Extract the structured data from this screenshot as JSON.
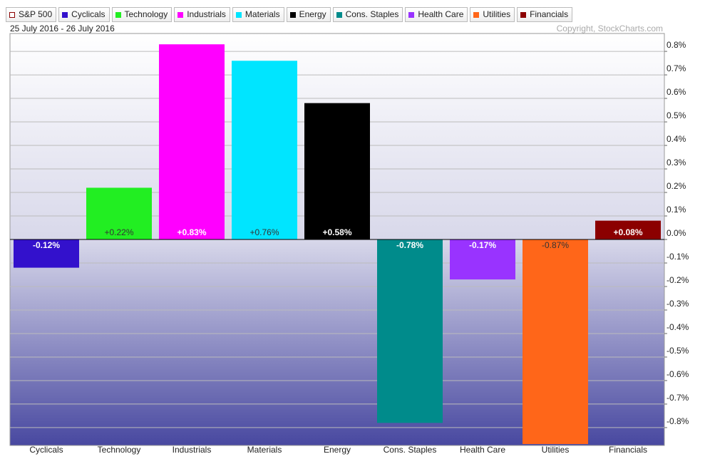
{
  "chart_data": {
    "type": "bar",
    "legend": [
      {
        "name": "S&P 500",
        "color": "#8b0000",
        "hollow": true
      },
      {
        "name": "Cyclicals",
        "color": "#3311cc"
      },
      {
        "name": "Technology",
        "color": "#22ee22"
      },
      {
        "name": "Industrials",
        "color": "#ff00ff"
      },
      {
        "name": "Materials",
        "color": "#00e5ff"
      },
      {
        "name": "Energy",
        "color": "#000000"
      },
      {
        "name": "Cons. Staples",
        "color": "#008b8b"
      },
      {
        "name": "Health Care",
        "color": "#9933ff"
      },
      {
        "name": "Utilities",
        "color": "#ff6619"
      },
      {
        "name": "Financials",
        "color": "#8b0000"
      }
    ],
    "subtitle": "25 July 2016 - 26 July 2016",
    "copyright": "Copyright, StockCharts.com",
    "categories": [
      "Cyclicals",
      "Technology",
      "Industrials",
      "Materials",
      "Energy",
      "Cons. Staples",
      "Health Care",
      "Utilities",
      "Financials"
    ],
    "values": [
      -0.12,
      0.22,
      0.83,
      0.76,
      0.58,
      -0.78,
      -0.17,
      -0.87,
      0.08
    ],
    "value_labels": [
      "-0.12%",
      "+0.22%",
      "+0.83%",
      "+0.76%",
      "+0.58%",
      "-0.78%",
      "-0.17%",
      "-0.87%",
      "+0.08%"
    ],
    "colors": [
      "#3311cc",
      "#22ee22",
      "#ff00ff",
      "#00e5ff",
      "#000000",
      "#008b8b",
      "#9933ff",
      "#ff6619",
      "#8b0000"
    ],
    "ylim": [
      -0.876,
      0.876
    ],
    "yticks": [
      {
        "value": 0.8,
        "label": "0.8%"
      },
      {
        "value": 0.7,
        "label": "0.7%"
      },
      {
        "value": 0.6,
        "label": "0.6%"
      },
      {
        "value": 0.5,
        "label": "0.5%"
      },
      {
        "value": 0.4,
        "label": "0.4%"
      },
      {
        "value": 0.3,
        "label": "0.3%"
      },
      {
        "value": 0.2,
        "label": "0.2%"
      },
      {
        "value": 0.1,
        "label": "0.1%"
      },
      {
        "value": 0.0,
        "label": "0.0%"
      },
      {
        "value": -0.1,
        "label": "-0.1%"
      },
      {
        "value": -0.2,
        "label": "-0.2%"
      },
      {
        "value": -0.3,
        "label": "-0.3%"
      },
      {
        "value": -0.4,
        "label": "-0.4%"
      },
      {
        "value": -0.5,
        "label": "-0.5%"
      },
      {
        "value": -0.6,
        "label": "-0.6%"
      },
      {
        "value": -0.7,
        "label": "-0.7%"
      },
      {
        "value": -0.8,
        "label": "-0.8%"
      }
    ],
    "grid": true
  }
}
